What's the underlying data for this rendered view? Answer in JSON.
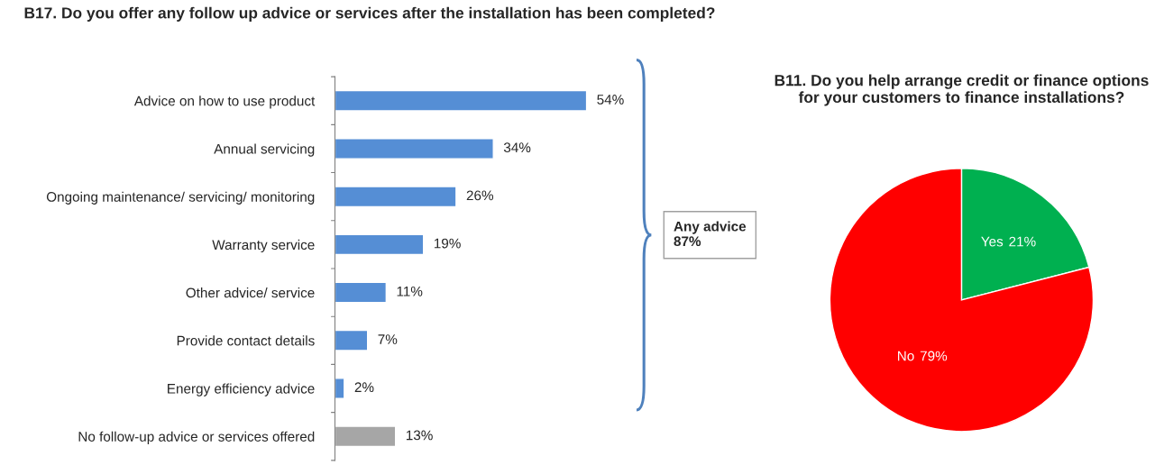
{
  "chart_data": [
    {
      "type": "bar",
      "orientation": "horizontal",
      "title": "B17. Do you offer any follow up advice or services after the installation has been completed?",
      "categories": [
        "Advice on how to use product",
        "Annual servicing",
        "Ongoing maintenance/ servicing/ monitoring",
        "Warranty service",
        "Other advice/ service",
        "Provide contact details",
        "Energy efficiency advice",
        "No follow-up advice or services offered"
      ],
      "values": [
        54,
        34,
        26,
        19,
        11,
        7,
        2,
        13
      ],
      "value_labels": [
        "54%",
        "34%",
        "26%",
        "19%",
        "11%",
        "7%",
        "2%",
        "13%"
      ],
      "colors": [
        "#558ed5",
        "#558ed5",
        "#558ed5",
        "#558ed5",
        "#558ed5",
        "#558ed5",
        "#558ed5",
        "#a6a6a6"
      ],
      "annotations": [
        "Any advice\n87%"
      ],
      "grid": false,
      "legend": false
    },
    {
      "type": "pie",
      "title": "B11. Do you help arrange credit or finance options for your customers to finance installations?",
      "categories": [
        "Yes",
        "No"
      ],
      "values": [
        21,
        79
      ],
      "value_labels": [
        "21%",
        "79%"
      ],
      "colors": [
        "#00b050",
        "#ff0000"
      ],
      "legend": false
    }
  ]
}
